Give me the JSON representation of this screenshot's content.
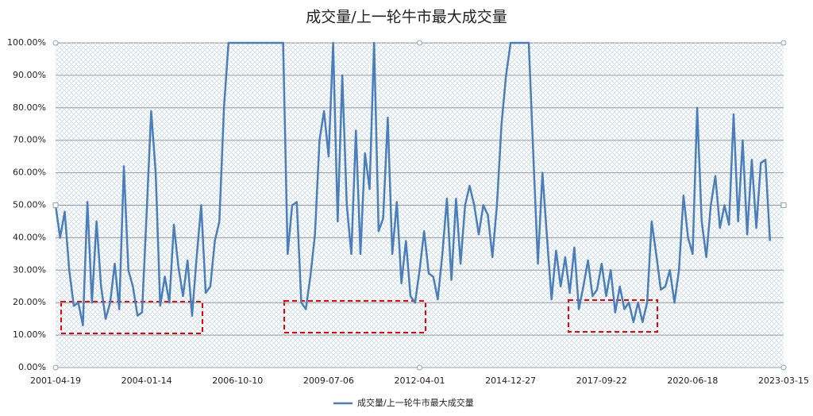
{
  "chart_data": {
    "type": "line",
    "title": "成交量/上一轮牛市最大成交量",
    "categories": [
      "2001-04-19",
      null,
      null,
      null,
      null,
      null,
      null,
      null,
      null,
      null,
      null,
      null,
      null,
      null,
      null,
      null,
      null,
      null,
      null,
      null,
      "2004-01-14",
      null,
      null,
      null,
      null,
      null,
      null,
      null,
      null,
      null,
      null,
      null,
      null,
      null,
      null,
      null,
      null,
      null,
      null,
      null,
      "2006-10-10",
      null,
      null,
      null,
      null,
      null,
      null,
      null,
      null,
      null,
      null,
      null,
      null,
      null,
      null,
      null,
      null,
      null,
      null,
      null,
      "2009-07-06",
      null,
      null,
      null,
      null,
      null,
      null,
      null,
      null,
      null,
      null,
      null,
      null,
      null,
      null,
      null,
      null,
      null,
      null,
      null,
      "2012-04-01",
      null,
      null,
      null,
      null,
      null,
      null,
      null,
      null,
      null,
      null,
      null,
      null,
      null,
      null,
      null,
      null,
      null,
      null,
      null,
      "2014-12-27",
      null,
      null,
      null,
      null,
      null,
      null,
      null,
      null,
      null,
      null,
      null,
      null,
      null,
      null,
      null,
      null,
      null,
      null,
      null,
      "2017-09-22",
      null,
      null,
      null,
      null,
      null,
      null,
      null,
      null,
      null,
      null,
      null,
      null,
      null,
      null,
      null,
      null,
      null,
      null,
      null,
      "2020-06-18",
      null,
      null,
      null,
      null,
      null,
      null,
      null,
      null,
      null,
      null,
      null,
      null,
      null,
      null,
      null,
      null,
      null,
      null,
      null,
      "2023-03-15"
    ],
    "series": [
      {
        "name": "成交量/上一轮牛市最大成交量",
        "color": "#4a7ebb",
        "values": [
          50,
          40,
          48,
          30,
          19,
          20,
          13,
          51,
          20,
          45,
          25,
          15,
          20,
          32,
          18,
          62,
          30,
          25,
          16,
          17,
          47,
          79,
          60,
          19,
          28,
          20,
          44,
          31,
          22,
          33,
          16,
          34,
          50,
          23,
          25,
          39,
          45,
          80,
          100,
          100,
          100,
          100,
          100,
          100,
          100,
          100,
          100,
          100,
          100,
          100,
          100,
          35,
          50,
          51,
          20,
          18,
          28,
          41,
          70,
          79,
          65,
          100,
          45,
          90,
          50,
          35,
          73,
          35,
          66,
          55,
          100,
          42,
          46,
          77,
          35,
          51,
          26,
          39,
          22,
          20,
          30,
          42,
          29,
          28,
          21,
          35,
          52,
          27,
          52,
          32,
          50,
          56,
          50,
          41,
          50,
          47,
          34,
          50,
          75,
          90,
          100,
          100,
          100,
          100,
          100,
          65,
          32,
          60,
          40,
          21,
          36,
          25,
          34,
          23,
          37,
          18,
          25,
          33,
          22,
          24,
          32,
          22,
          30,
          17,
          25,
          18,
          20,
          14,
          20,
          14,
          20,
          45,
          35,
          24,
          25,
          30,
          20,
          30,
          53,
          40,
          35,
          80,
          45,
          34,
          50,
          59,
          43,
          50,
          44,
          78,
          45,
          70,
          41,
          64,
          43,
          63,
          64,
          39,
          null,
          null,
          null
        ]
      }
    ],
    "ylim": [
      0,
      100
    ],
    "yticks": [
      {
        "value": 0,
        "label": "0.00%"
      },
      {
        "value": 10,
        "label": "10.00%"
      },
      {
        "value": 20,
        "label": "20.00%"
      },
      {
        "value": 30,
        "label": "30.00%"
      },
      {
        "value": 40,
        "label": "40.00%"
      },
      {
        "value": 50,
        "label": "50.00%"
      },
      {
        "value": 60,
        "label": "60.00%"
      },
      {
        "value": 70,
        "label": "70.00%"
      },
      {
        "value": 80,
        "label": "80.00%"
      },
      {
        "value": 90,
        "label": "90.00%"
      },
      {
        "value": 100,
        "label": "100.00%"
      }
    ],
    "grid": true,
    "legend": "bottom"
  }
}
